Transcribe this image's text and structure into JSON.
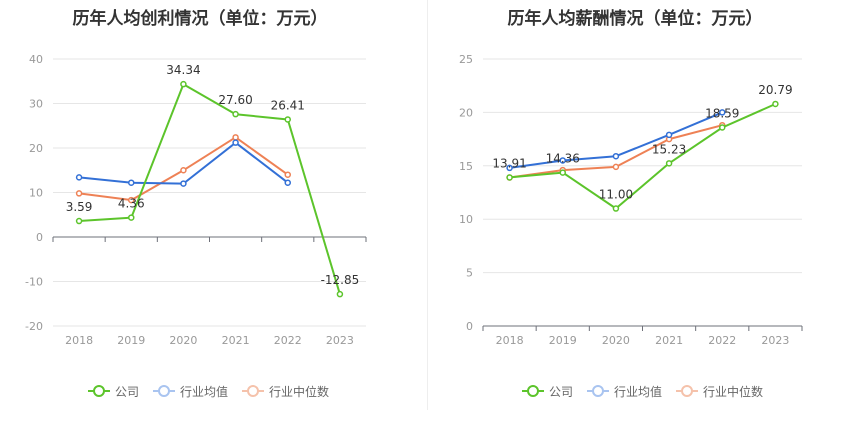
{
  "colors": {
    "company": "#5cc42b",
    "industry_avg": "#3370d6",
    "industry_median": "#ee8155",
    "grid": "#e6e6e6",
    "axis": "#999999",
    "label": "#333333"
  },
  "legend": [
    {
      "key": "company",
      "label": "公司",
      "color": "#5cc42b"
    },
    {
      "key": "industry_avg",
      "label": "行业均值",
      "color": "#3370d6"
    },
    {
      "key": "industry_median",
      "label": "行业中位数",
      "color": "#ee8155"
    }
  ],
  "chart_data": [
    {
      "type": "line",
      "title": "历年人均创利情况（单位：万元）",
      "categories": [
        "2018",
        "2019",
        "2020",
        "2021",
        "2022",
        "2023"
      ],
      "ylim": [
        -20,
        40
      ],
      "yticks": [
        -20,
        -10,
        0,
        10,
        20,
        30,
        40
      ],
      "series": [
        {
          "key": "company",
          "name": "公司",
          "values": [
            3.59,
            4.36,
            34.34,
            27.6,
            26.41,
            -12.85
          ],
          "labels": [
            "3.59",
            "4.36",
            "34.34",
            "27.60",
            "26.41",
            "-12.85"
          ]
        },
        {
          "key": "industry_avg",
          "name": "行业均值",
          "values": [
            13.4,
            12.2,
            12.0,
            21.2,
            12.2,
            null
          ]
        },
        {
          "key": "industry_median",
          "name": "行业中位数",
          "values": [
            9.8,
            8.3,
            15.0,
            22.4,
            14.0,
            null
          ]
        }
      ]
    },
    {
      "type": "line",
      "title": "历年人均薪酬情况（单位：万元）",
      "categories": [
        "2018",
        "2019",
        "2020",
        "2021",
        "2022",
        "2023"
      ],
      "ylim": [
        0,
        25
      ],
      "yticks": [
        0,
        5,
        10,
        15,
        20,
        25
      ],
      "series": [
        {
          "key": "company",
          "name": "公司",
          "values": [
            13.91,
            14.36,
            11.0,
            15.23,
            18.59,
            20.79
          ],
          "labels": [
            "13.91",
            "14.36",
            "11.00",
            "15.23",
            "18.59",
            "20.79"
          ]
        },
        {
          "key": "industry_avg",
          "name": "行业均值",
          "values": [
            14.8,
            15.5,
            15.9,
            17.9,
            20.0,
            null
          ]
        },
        {
          "key": "industry_median",
          "name": "行业中位数",
          "values": [
            13.9,
            14.6,
            14.9,
            17.5,
            18.8,
            null
          ]
        }
      ]
    }
  ]
}
